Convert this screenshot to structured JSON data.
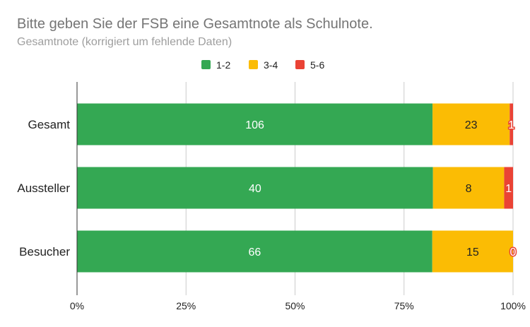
{
  "chart_data": {
    "type": "bar",
    "orientation": "horizontal",
    "stacked": "percent",
    "title": "Bitte geben Sie der FSB eine Gesamtnote als Schulnote.",
    "subtitle": "Gesamtnote (korrigiert um fehlende Daten)",
    "categories": [
      "Gesamt",
      "Aussteller",
      "Besucher"
    ],
    "series": [
      {
        "name": "1-2",
        "color": "#34a853",
        "values": [
          106,
          40,
          66
        ]
      },
      {
        "name": "3-4",
        "color": "#fbbc04",
        "values": [
          23,
          8,
          15
        ]
      },
      {
        "name": "5-6",
        "color": "#ea4335",
        "values": [
          1,
          1,
          0
        ]
      }
    ],
    "xticks": [
      "0%",
      "25%",
      "50%",
      "75%",
      "100%"
    ],
    "xlim": [
      0,
      100
    ],
    "legend": "top-center",
    "grid": true
  }
}
